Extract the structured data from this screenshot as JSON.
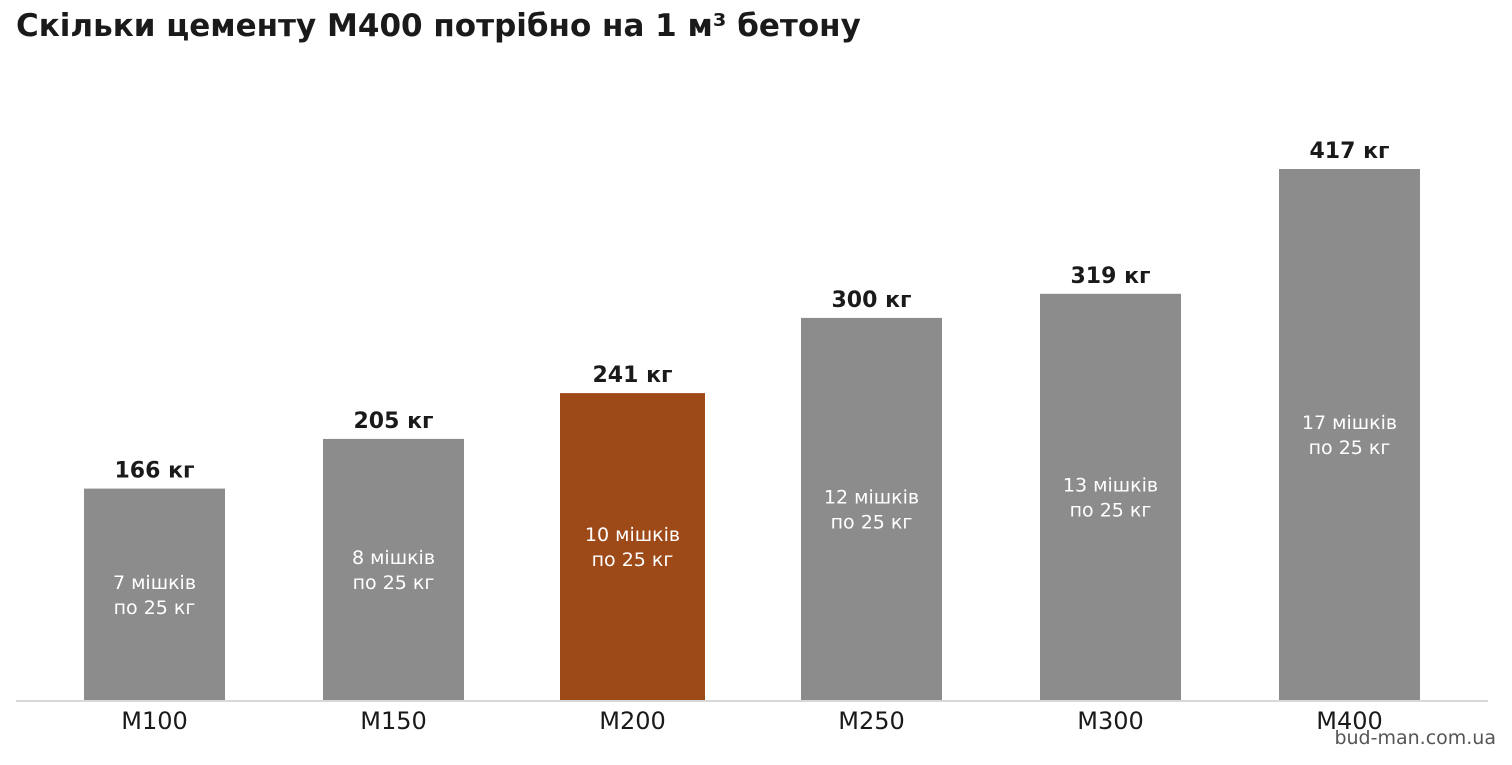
{
  "chart_data": {
    "type": "bar",
    "title": "Скільки цементу М400 потрібно на 1 м³ бетону",
    "xlabel": "",
    "ylabel": "",
    "categories": [
      "М100",
      "М150",
      "М200",
      "М250",
      "М300",
      "М400"
    ],
    "values": [
      166,
      205,
      241,
      300,
      319,
      417
    ],
    "value_labels": [
      "166 кг",
      "205 кг",
      "241 кг",
      "300 кг",
      "319 кг",
      "417 кг"
    ],
    "inner_labels": [
      [
        "7 мішків",
        "по 25 кг"
      ],
      [
        "8 мішків",
        "по 25 кг"
      ],
      [
        "10 мішків",
        "по 25 кг"
      ],
      [
        "12 мішків",
        "по 25 кг"
      ],
      [
        "13 мішків",
        "по 25 кг"
      ],
      [
        "17 мішків",
        "по 25 кг"
      ]
    ],
    "highlight_index": 2,
    "ylim": [
      0,
      470
    ],
    "grid": false,
    "colors": {
      "bar": "#8c8c8c",
      "highlight": "#9e4a18",
      "value_text": "#1a1a1a",
      "inner_text": "#ffffff",
      "axis": "#cccccc"
    }
  },
  "source": "bud-man.com.ua"
}
